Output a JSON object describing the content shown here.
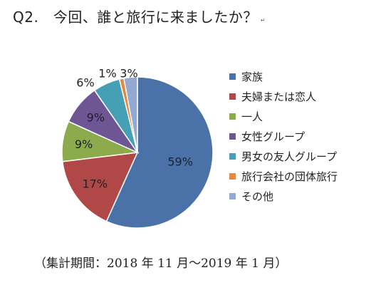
{
  "title": "Q2.　今回、誰と旅行に来ましたか？",
  "title_mark": "↵",
  "footnote": "（集計期間：2018 年 11 月～2019 年 1 月）",
  "chart_data": {
    "type": "pie",
    "categories": [
      "家族",
      "夫婦または恋人",
      "一人",
      "女性グループ",
      "男女の友人グループ",
      "旅行会社の団体旅行",
      "その他"
    ],
    "values": [
      59,
      17,
      9,
      9,
      6,
      1,
      3
    ],
    "labels": [
      "59%",
      "17%",
      "9%",
      "9%",
      "6%",
      "1%",
      "3%"
    ],
    "colors": [
      "#4a72a8",
      "#b04848",
      "#8bab4c",
      "#6e5594",
      "#45a0b6",
      "#e28b3f",
      "#93a9d1"
    ],
    "legend_position": "right"
  }
}
